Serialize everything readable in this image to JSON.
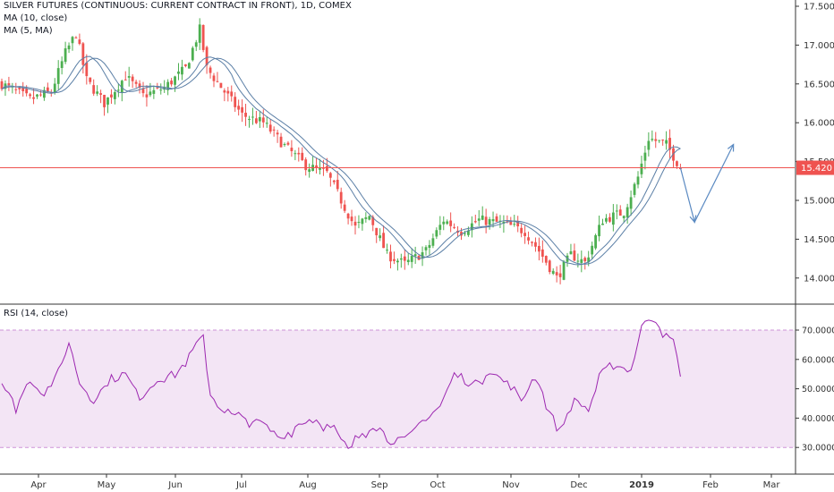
{
  "chart_data": [
    {
      "type": "candlestick",
      "title": "SILVER FUTURES (CONTINUOUS: CURRENT CONTRACT IN FRONT), 1D, COMEX",
      "indicators": [
        "MA (10, close)",
        "MA (5, MA)"
      ],
      "ylim": [
        13.75,
        17.55
      ],
      "y_ticks": [
        "17.500",
        "17.000",
        "16.500",
        "16.000",
        "15.500",
        "15.000",
        "14.500",
        "14.000"
      ],
      "x_ticks": [
        "Apr",
        "May",
        "Jun",
        "Jul",
        "Aug",
        "Sep",
        "Oct",
        "Nov",
        "Dec",
        "2019",
        "Feb",
        "Mar"
      ],
      "last_price": "15.420",
      "colors": {
        "up": "#4caf50",
        "down": "#ef5350",
        "ma": "#5b7fa6",
        "price_line": "#ef5350",
        "arrow": "#5b8ac2"
      },
      "anchors": [
        {
          "i": 0,
          "v": 16.5
        },
        {
          "i": 8,
          "v": 16.3
        },
        {
          "i": 14,
          "v": 16.4
        },
        {
          "i": 18,
          "v": 16.9
        },
        {
          "i": 21,
          "v": 17.15
        },
        {
          "i": 24,
          "v": 16.55
        },
        {
          "i": 29,
          "v": 16.25
        },
        {
          "i": 35,
          "v": 16.6
        },
        {
          "i": 40,
          "v": 16.35
        },
        {
          "i": 46,
          "v": 16.45
        },
        {
          "i": 52,
          "v": 16.7
        },
        {
          "i": 56,
          "v": 17.2
        },
        {
          "i": 58,
          "v": 16.7
        },
        {
          "i": 63,
          "v": 16.4
        },
        {
          "i": 68,
          "v": 16.1
        },
        {
          "i": 74,
          "v": 16.0
        },
        {
          "i": 80,
          "v": 15.7
        },
        {
          "i": 86,
          "v": 15.45
        },
        {
          "i": 92,
          "v": 15.35
        },
        {
          "i": 96,
          "v": 15.0
        },
        {
          "i": 100,
          "v": 14.65
        },
        {
          "i": 104,
          "v": 14.8
        },
        {
          "i": 109,
          "v": 14.3
        },
        {
          "i": 114,
          "v": 14.18
        },
        {
          "i": 120,
          "v": 14.35
        },
        {
          "i": 125,
          "v": 14.75
        },
        {
          "i": 130,
          "v": 14.6
        },
        {
          "i": 135,
          "v": 14.75
        },
        {
          "i": 142,
          "v": 14.7
        },
        {
          "i": 148,
          "v": 14.6
        },
        {
          "i": 152,
          "v": 14.35
        },
        {
          "i": 157,
          "v": 14.0
        },
        {
          "i": 161,
          "v": 14.3
        },
        {
          "i": 165,
          "v": 14.2
        },
        {
          "i": 170,
          "v": 14.75
        },
        {
          "i": 176,
          "v": 14.85
        },
        {
          "i": 180,
          "v": 15.3
        },
        {
          "i": 183,
          "v": 15.8
        },
        {
          "i": 188,
          "v": 15.72
        },
        {
          "i": 192,
          "v": 15.42
        }
      ],
      "projection": [
        {
          "i": 192,
          "v": 15.42
        },
        {
          "i": 196,
          "v": 14.72
        },
        {
          "i": 207,
          "v": 15.72
        }
      ]
    },
    {
      "type": "line",
      "title": "RSI (14, close)",
      "ylim": [
        25,
        77
      ],
      "y_ticks": [
        "70.0000",
        "60.0000",
        "50.0000",
        "40.0000",
        "30.0000"
      ],
      "band": [
        30,
        70
      ],
      "colors": {
        "line": "#9c27b0",
        "band": "#f3e5f5",
        "band_edge": "#ce93d8"
      },
      "anchors": [
        {
          "i": 0,
          "v": 52
        },
        {
          "i": 4,
          "v": 44
        },
        {
          "i": 8,
          "v": 53
        },
        {
          "i": 12,
          "v": 48
        },
        {
          "i": 16,
          "v": 55
        },
        {
          "i": 19,
          "v": 66
        },
        {
          "i": 22,
          "v": 52
        },
        {
          "i": 26,
          "v": 46
        },
        {
          "i": 30,
          "v": 52
        },
        {
          "i": 35,
          "v": 55
        },
        {
          "i": 39,
          "v": 47
        },
        {
          "i": 44,
          "v": 53
        },
        {
          "i": 50,
          "v": 56
        },
        {
          "i": 54,
          "v": 63
        },
        {
          "i": 57,
          "v": 68
        },
        {
          "i": 59,
          "v": 48
        },
        {
          "i": 63,
          "v": 42
        },
        {
          "i": 68,
          "v": 40
        },
        {
          "i": 74,
          "v": 38
        },
        {
          "i": 79,
          "v": 33
        },
        {
          "i": 84,
          "v": 38
        },
        {
          "i": 88,
          "v": 40
        },
        {
          "i": 94,
          "v": 36
        },
        {
          "i": 98,
          "v": 29
        },
        {
          "i": 102,
          "v": 35
        },
        {
          "i": 106,
          "v": 38
        },
        {
          "i": 110,
          "v": 32
        },
        {
          "i": 115,
          "v": 33
        },
        {
          "i": 118,
          "v": 38
        },
        {
          "i": 124,
          "v": 44
        },
        {
          "i": 128,
          "v": 55
        },
        {
          "i": 133,
          "v": 51
        },
        {
          "i": 138,
          "v": 56
        },
        {
          "i": 143,
          "v": 52
        },
        {
          "i": 147,
          "v": 46
        },
        {
          "i": 151,
          "v": 55
        },
        {
          "i": 155,
          "v": 42
        },
        {
          "i": 158,
          "v": 36
        },
        {
          "i": 162,
          "v": 46
        },
        {
          "i": 166,
          "v": 43
        },
        {
          "i": 170,
          "v": 56
        },
        {
          "i": 174,
          "v": 58
        },
        {
          "i": 178,
          "v": 56
        },
        {
          "i": 181,
          "v": 71
        },
        {
          "i": 184,
          "v": 75
        },
        {
          "i": 188,
          "v": 68
        },
        {
          "i": 190,
          "v": 66
        },
        {
          "i": 192,
          "v": 55
        }
      ]
    }
  ]
}
